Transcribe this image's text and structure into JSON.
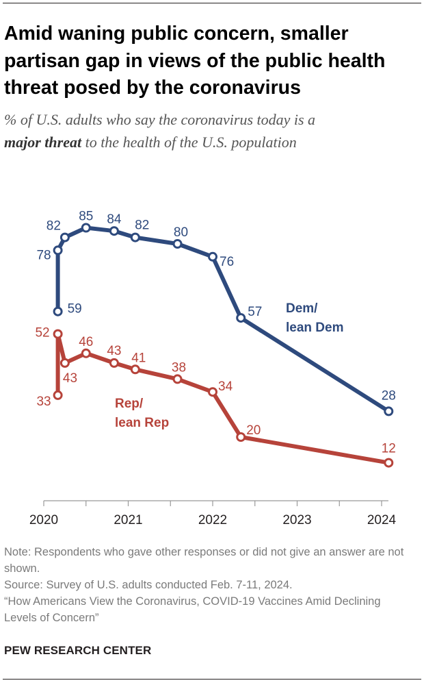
{
  "title": "Amid waning public concern, smaller partisan gap in views of the public health threat posed by the coronavirus",
  "subtitle": {
    "line1": "% of U.S. adults who say the coronavirus today is a",
    "emphasis": "major threat",
    "rest": " to the health of the U.S. population"
  },
  "chart_data": {
    "type": "line",
    "title": "Amid waning public concern, smaller partisan gap in views of the public health threat posed by the coronavirus",
    "xlabel": "",
    "ylabel": "",
    "xlim": [
      "2020-01-01",
      "2024-01-01"
    ],
    "ylim": [
      0,
      100
    ],
    "grid": false,
    "x_ticks": [
      "2020",
      "2021",
      "2022",
      "2023",
      "2024"
    ],
    "series": [
      {
        "name": "Dem/ lean Dem",
        "name_lines": [
          "Dem/",
          "lean Dem"
        ],
        "color": "#2e4a7d",
        "points": [
          {
            "x": "2020-03",
            "y": 59
          },
          {
            "x": "2020-03",
            "y": 78
          },
          {
            "x": "2020-04",
            "y": 82
          },
          {
            "x": "2020-07",
            "y": 85
          },
          {
            "x": "2020-11",
            "y": 84
          },
          {
            "x": "2021-02",
            "y": 82
          },
          {
            "x": "2021-08",
            "y": 80
          },
          {
            "x": "2022-01",
            "y": 76
          },
          {
            "x": "2022-05",
            "y": 57
          },
          {
            "x": "2024-02",
            "y": 28
          }
        ]
      },
      {
        "name": "Rep/ lean Rep",
        "name_lines": [
          "Rep/",
          "lean Rep"
        ],
        "color": "#b6433a",
        "points": [
          {
            "x": "2020-03",
            "y": 33
          },
          {
            "x": "2020-03",
            "y": 52
          },
          {
            "x": "2020-04",
            "y": 43
          },
          {
            "x": "2020-07",
            "y": 46
          },
          {
            "x": "2020-11",
            "y": 43
          },
          {
            "x": "2021-02",
            "y": 41
          },
          {
            "x": "2021-08",
            "y": 38
          },
          {
            "x": "2022-01",
            "y": 34
          },
          {
            "x": "2022-05",
            "y": 20
          },
          {
            "x": "2024-02",
            "y": 12
          }
        ]
      }
    ]
  },
  "notes": {
    "note": "Note: Respondents who gave other responses or did not give an answer are not shown.",
    "source": "Source: Survey of U.S. adults conducted Feb. 7-11, 2024.",
    "report": "“How Americans View the Coronavirus, COVID-19 Vaccines Amid Declining Levels of Concern”"
  },
  "brand": "PEW RESEARCH CENTER"
}
